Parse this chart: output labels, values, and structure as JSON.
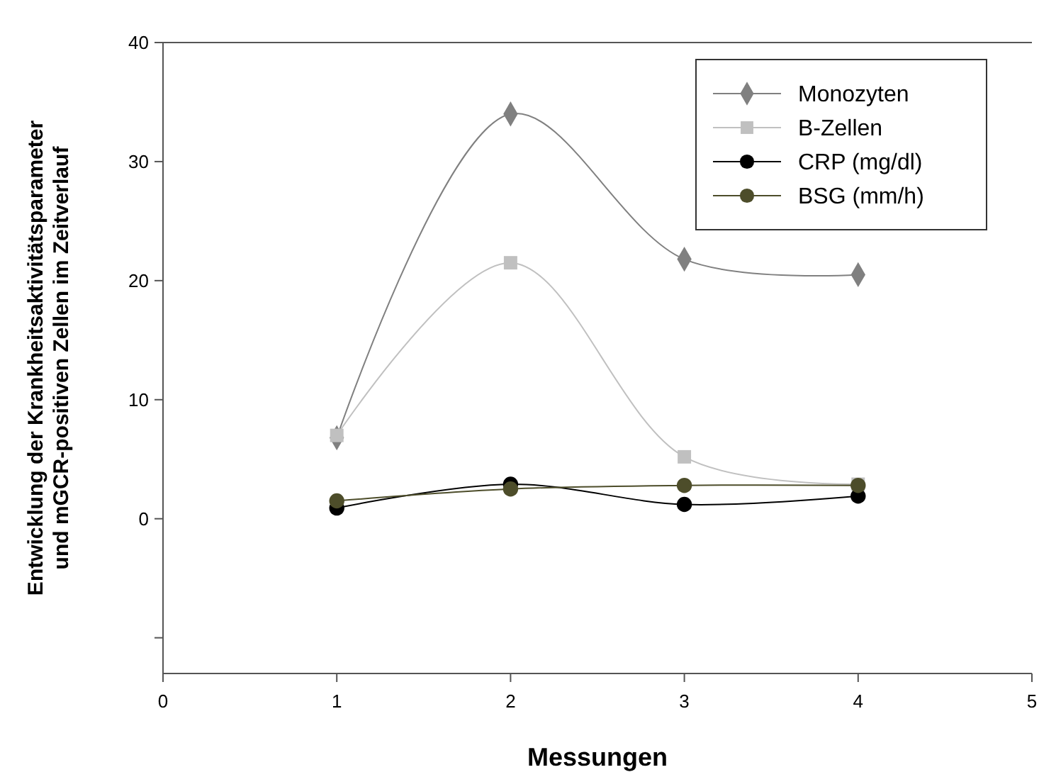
{
  "chart_data": {
    "type": "line",
    "xlabel": "Messungen",
    "ylabel": "Entwicklung der Krankheitsaktivitätsparameter und mGCR-positiven Zellen im Zeitverlauf",
    "x": [
      1,
      2,
      3,
      4
    ],
    "series": [
      {
        "name": "Monozyten",
        "color": "#808080",
        "marker": "diamond",
        "values": [
          6.8,
          34,
          21.8,
          20.5
        ]
      },
      {
        "name": "B-Zellen",
        "color": "#c0c0c0",
        "marker": "square",
        "values": [
          7,
          21.5,
          5.2,
          2.9
        ]
      },
      {
        "name": "CRP (mg/dl)",
        "color": "#000000",
        "marker": "circle",
        "values": [
          0.9,
          2.9,
          1.2,
          1.9
        ]
      },
      {
        "name": "BSG (mm/h)",
        "color": "#4d4d2a",
        "marker": "circle",
        "values": [
          1.5,
          2.5,
          2.8,
          2.8
        ]
      }
    ],
    "xlim": [
      0,
      5
    ],
    "xticks": [
      0,
      1,
      2,
      3,
      4,
      5
    ],
    "ylim": [
      -13,
      40
    ],
    "yticks": [
      {
        "value": -10,
        "label": null
      },
      0,
      10,
      20,
      30,
      40
    ],
    "legend": "top right",
    "grid": false,
    "line_style": "solid"
  }
}
